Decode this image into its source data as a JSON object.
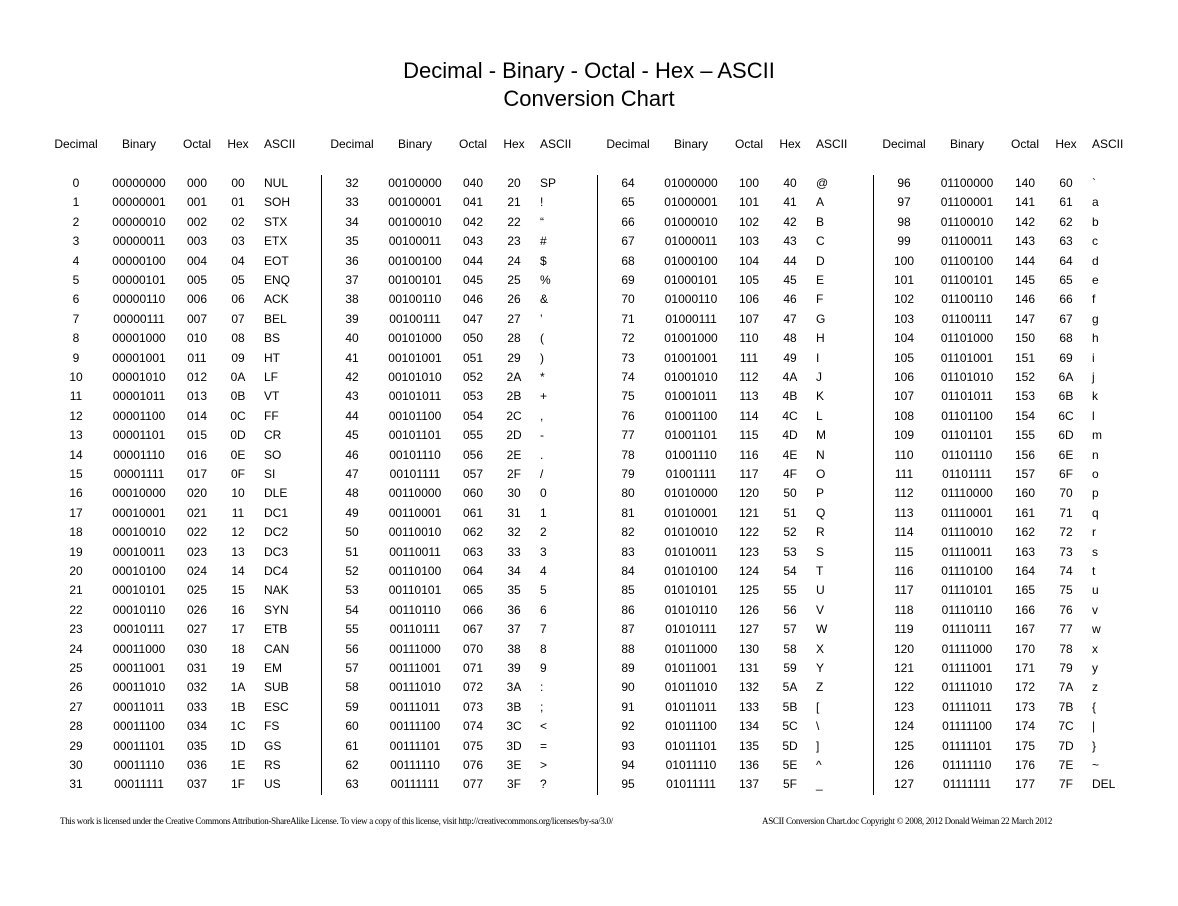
{
  "title_line1": "Decimal - Binary - Octal - Hex – ASCII",
  "title_line2": "Conversion Chart",
  "columns": [
    "Decimal",
    "Binary",
    "Octal",
    "Hex",
    "ASCII"
  ],
  "groups": [
    {
      "rows": [
        [
          "0",
          "00000000",
          "000",
          "00",
          "NUL"
        ],
        [
          "1",
          "00000001",
          "001",
          "01",
          "SOH"
        ],
        [
          "2",
          "00000010",
          "002",
          "02",
          "STX"
        ],
        [
          "3",
          "00000011",
          "003",
          "03",
          "ETX"
        ],
        [
          "4",
          "00000100",
          "004",
          "04",
          "EOT"
        ],
        [
          "5",
          "00000101",
          "005",
          "05",
          "ENQ"
        ],
        [
          "6",
          "00000110",
          "006",
          "06",
          "ACK"
        ],
        [
          "7",
          "00000111",
          "007",
          "07",
          "BEL"
        ],
        [
          "8",
          "00001000",
          "010",
          "08",
          "BS"
        ],
        [
          "9",
          "00001001",
          "011",
          "09",
          "HT"
        ],
        [
          "10",
          "00001010",
          "012",
          "0A",
          "LF"
        ],
        [
          "11",
          "00001011",
          "013",
          "0B",
          "VT"
        ],
        [
          "12",
          "00001100",
          "014",
          "0C",
          "FF"
        ],
        [
          "13",
          "00001101",
          "015",
          "0D",
          "CR"
        ],
        [
          "14",
          "00001110",
          "016",
          "0E",
          "SO"
        ],
        [
          "15",
          "00001111",
          "017",
          "0F",
          "SI"
        ],
        [
          "16",
          "00010000",
          "020",
          "10",
          "DLE"
        ],
        [
          "17",
          "00010001",
          "021",
          "11",
          "DC1"
        ],
        [
          "18",
          "00010010",
          "022",
          "12",
          "DC2"
        ],
        [
          "19",
          "00010011",
          "023",
          "13",
          "DC3"
        ],
        [
          "20",
          "00010100",
          "024",
          "14",
          "DC4"
        ],
        [
          "21",
          "00010101",
          "025",
          "15",
          "NAK"
        ],
        [
          "22",
          "00010110",
          "026",
          "16",
          "SYN"
        ],
        [
          "23",
          "00010111",
          "027",
          "17",
          "ETB"
        ],
        [
          "24",
          "00011000",
          "030",
          "18",
          "CAN"
        ],
        [
          "25",
          "00011001",
          "031",
          "19",
          "EM"
        ],
        [
          "26",
          "00011010",
          "032",
          "1A",
          "SUB"
        ],
        [
          "27",
          "00011011",
          "033",
          "1B",
          "ESC"
        ],
        [
          "28",
          "00011100",
          "034",
          "1C",
          "FS"
        ],
        [
          "29",
          "00011101",
          "035",
          "1D",
          "GS"
        ],
        [
          "30",
          "00011110",
          "036",
          "1E",
          "RS"
        ],
        [
          "31",
          "00011111",
          "037",
          "1F",
          "US"
        ]
      ]
    },
    {
      "rows": [
        [
          "32",
          "00100000",
          "040",
          "20",
          "SP"
        ],
        [
          "33",
          "00100001",
          "041",
          "21",
          "!"
        ],
        [
          "34",
          "00100010",
          "042",
          "22",
          "“"
        ],
        [
          "35",
          "00100011",
          "043",
          "23",
          "#"
        ],
        [
          "36",
          "00100100",
          "044",
          "24",
          "$"
        ],
        [
          "37",
          "00100101",
          "045",
          "25",
          "%"
        ],
        [
          "38",
          "00100110",
          "046",
          "26",
          "&"
        ],
        [
          "39",
          "00100111",
          "047",
          "27",
          "’"
        ],
        [
          "40",
          "00101000",
          "050",
          "28",
          "("
        ],
        [
          "41",
          "00101001",
          "051",
          "29",
          ")"
        ],
        [
          "42",
          "00101010",
          "052",
          "2A",
          "*"
        ],
        [
          "43",
          "00101011",
          "053",
          "2B",
          "+"
        ],
        [
          "44",
          "00101100",
          "054",
          "2C",
          ","
        ],
        [
          "45",
          "00101101",
          "055",
          "2D",
          "-"
        ],
        [
          "46",
          "00101110",
          "056",
          "2E",
          "."
        ],
        [
          "47",
          "00101111",
          "057",
          "2F",
          "/"
        ],
        [
          "48",
          "00110000",
          "060",
          "30",
          "0"
        ],
        [
          "49",
          "00110001",
          "061",
          "31",
          "1"
        ],
        [
          "50",
          "00110010",
          "062",
          "32",
          "2"
        ],
        [
          "51",
          "00110011",
          "063",
          "33",
          "3"
        ],
        [
          "52",
          "00110100",
          "064",
          "34",
          "4"
        ],
        [
          "53",
          "00110101",
          "065",
          "35",
          "5"
        ],
        [
          "54",
          "00110110",
          "066",
          "36",
          "6"
        ],
        [
          "55",
          "00110111",
          "067",
          "37",
          "7"
        ],
        [
          "56",
          "00111000",
          "070",
          "38",
          "8"
        ],
        [
          "57",
          "00111001",
          "071",
          "39",
          "9"
        ],
        [
          "58",
          "00111010",
          "072",
          "3A",
          ":"
        ],
        [
          "59",
          "00111011",
          "073",
          "3B",
          ";"
        ],
        [
          "60",
          "00111100",
          "074",
          "3C",
          "<"
        ],
        [
          "61",
          "00111101",
          "075",
          "3D",
          "="
        ],
        [
          "62",
          "00111110",
          "076",
          "3E",
          ">"
        ],
        [
          "63",
          "00111111",
          "077",
          "3F",
          "?"
        ]
      ]
    },
    {
      "rows": [
        [
          "64",
          "01000000",
          "100",
          "40",
          "@"
        ],
        [
          "65",
          "01000001",
          "101",
          "41",
          "A"
        ],
        [
          "66",
          "01000010",
          "102",
          "42",
          "B"
        ],
        [
          "67",
          "01000011",
          "103",
          "43",
          "C"
        ],
        [
          "68",
          "01000100",
          "104",
          "44",
          "D"
        ],
        [
          "69",
          "01000101",
          "105",
          "45",
          "E"
        ],
        [
          "70",
          "01000110",
          "106",
          "46",
          "F"
        ],
        [
          "71",
          "01000111",
          "107",
          "47",
          "G"
        ],
        [
          "72",
          "01001000",
          "110",
          "48",
          "H"
        ],
        [
          "73",
          "01001001",
          "111",
          "49",
          "I"
        ],
        [
          "74",
          "01001010",
          "112",
          "4A",
          "J"
        ],
        [
          "75",
          "01001011",
          "113",
          "4B",
          "K"
        ],
        [
          "76",
          "01001100",
          "114",
          "4C",
          "L"
        ],
        [
          "77",
          "01001101",
          "115",
          "4D",
          "M"
        ],
        [
          "78",
          "01001110",
          "116",
          "4E",
          "N"
        ],
        [
          "79",
          "01001111",
          "117",
          "4F",
          "O"
        ],
        [
          "80",
          "01010000",
          "120",
          "50",
          "P"
        ],
        [
          "81",
          "01010001",
          "121",
          "51",
          "Q"
        ],
        [
          "82",
          "01010010",
          "122",
          "52",
          "R"
        ],
        [
          "83",
          "01010011",
          "123",
          "53",
          "S"
        ],
        [
          "84",
          "01010100",
          "124",
          "54",
          "T"
        ],
        [
          "85",
          "01010101",
          "125",
          "55",
          "U"
        ],
        [
          "86",
          "01010110",
          "126",
          "56",
          "V"
        ],
        [
          "87",
          "01010111",
          "127",
          "57",
          "W"
        ],
        [
          "88",
          "01011000",
          "130",
          "58",
          "X"
        ],
        [
          "89",
          "01011001",
          "131",
          "59",
          "Y"
        ],
        [
          "90",
          "01011010",
          "132",
          "5A",
          "Z"
        ],
        [
          "91",
          "01011011",
          "133",
          "5B",
          "["
        ],
        [
          "92",
          "01011100",
          "134",
          "5C",
          "\\"
        ],
        [
          "93",
          "01011101",
          "135",
          "5D",
          "]"
        ],
        [
          "94",
          "01011110",
          "136",
          "5E",
          "^"
        ],
        [
          "95",
          "01011111",
          "137",
          "5F",
          "_"
        ]
      ]
    },
    {
      "rows": [
        [
          "96",
          "01100000",
          "140",
          "60",
          "`"
        ],
        [
          "97",
          "01100001",
          "141",
          "61",
          "a"
        ],
        [
          "98",
          "01100010",
          "142",
          "62",
          "b"
        ],
        [
          "99",
          "01100011",
          "143",
          "63",
          "c"
        ],
        [
          "100",
          "01100100",
          "144",
          "64",
          "d"
        ],
        [
          "101",
          "01100101",
          "145",
          "65",
          "e"
        ],
        [
          "102",
          "01100110",
          "146",
          "66",
          "f"
        ],
        [
          "103",
          "01100111",
          "147",
          "67",
          "g"
        ],
        [
          "104",
          "01101000",
          "150",
          "68",
          "h"
        ],
        [
          "105",
          "01101001",
          "151",
          "69",
          "i"
        ],
        [
          "106",
          "01101010",
          "152",
          "6A",
          "j"
        ],
        [
          "107",
          "01101011",
          "153",
          "6B",
          "k"
        ],
        [
          "108",
          "01101100",
          "154",
          "6C",
          "l"
        ],
        [
          "109",
          "01101101",
          "155",
          "6D",
          "m"
        ],
        [
          "110",
          "01101110",
          "156",
          "6E",
          "n"
        ],
        [
          "111",
          "01101111",
          "157",
          "6F",
          "o"
        ],
        [
          "112",
          "01110000",
          "160",
          "70",
          "p"
        ],
        [
          "113",
          "01110001",
          "161",
          "71",
          "q"
        ],
        [
          "114",
          "01110010",
          "162",
          "72",
          "r"
        ],
        [
          "115",
          "01110011",
          "163",
          "73",
          "s"
        ],
        [
          "116",
          "01110100",
          "164",
          "74",
          "t"
        ],
        [
          "117",
          "01110101",
          "165",
          "75",
          "u"
        ],
        [
          "118",
          "01110110",
          "166",
          "76",
          "v"
        ],
        [
          "119",
          "01110111",
          "167",
          "77",
          "w"
        ],
        [
          "120",
          "01111000",
          "170",
          "78",
          "x"
        ],
        [
          "121",
          "01111001",
          "171",
          "79",
          "y"
        ],
        [
          "122",
          "01111010",
          "172",
          "7A",
          "z"
        ],
        [
          "123",
          "01111011",
          "173",
          "7B",
          "{"
        ],
        [
          "124",
          "01111100",
          "174",
          "7C",
          "|"
        ],
        [
          "125",
          "01111101",
          "175",
          "7D",
          "}"
        ],
        [
          "126",
          "01111110",
          "176",
          "7E",
          "~"
        ],
        [
          "127",
          "01111111",
          "177",
          "7F",
          "DEL"
        ]
      ]
    }
  ],
  "footer": {
    "license": "This work is licensed under the Creative Commons Attribution-ShareAlike License.  To view a copy of this license, visit  http://creativecommons.org/licenses/by-sa/3.0/",
    "credit": "ASCII Conversion Chart.doc    Copyright © 2008, 2012    Donald Weiman   22 March 2012"
  }
}
